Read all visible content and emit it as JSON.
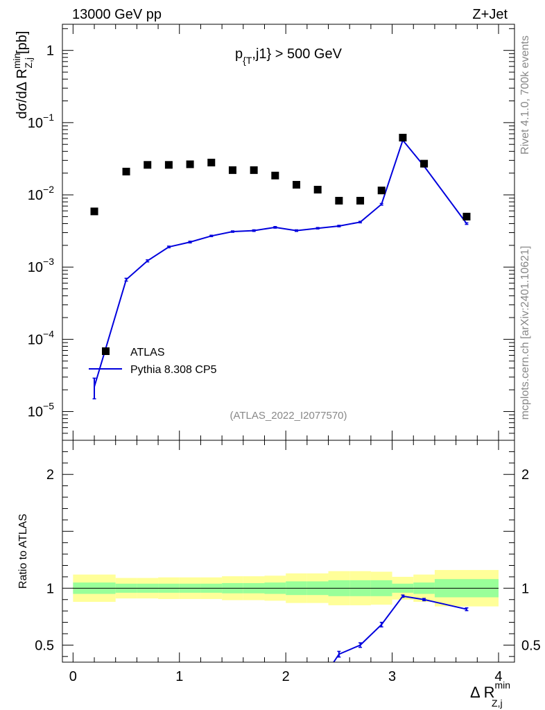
{
  "header": {
    "left": "13000 GeV pp",
    "right": "Z+Jet"
  },
  "sidebar": {
    "rivet": "Rivet 4.1.0,  700k events",
    "mcplots": "mcplots.cern.ch [arXiv:2401.10621]"
  },
  "chart_data": [
    {
      "type": "scatter",
      "title": "p_{T},j1} > 500 GeV",
      "title_main": "p",
      "title_sub": "{T",
      "title_rest": ",j1} > 500 GeV",
      "ylabel": "dσ/dΔ R^min_Z,j [pb]",
      "ylabel_main": "dσ/dΔ R",
      "ylabel_sup": "min",
      "ylabel_sub": "Z,j",
      "ylabel_unit": "[pb]",
      "yscale": "log",
      "ylim": [
        4e-06,
        2.3
      ],
      "xlim": [
        -0.1,
        4.15
      ],
      "ytick_labels": [
        {
          "value": 1,
          "base": "1",
          "exp": ""
        },
        {
          "value": 0.1,
          "base": "10",
          "exp": "−1"
        },
        {
          "value": 0.01,
          "base": "10",
          "exp": "−2"
        },
        {
          "value": 0.001,
          "base": "10",
          "exp": "−3"
        },
        {
          "value": 0.0001,
          "base": "10",
          "exp": "−4"
        },
        {
          "value": 1e-05,
          "base": "10",
          "exp": "−5"
        }
      ],
      "watermark": "(ATLAS_2022_I2077570)",
      "legend_position": "lower-left",
      "series": [
        {
          "name": "ATLAS",
          "style": "square-marker",
          "color": "#000000",
          "x": [
            0.2,
            0.5,
            0.7,
            0.9,
            1.1,
            1.3,
            1.5,
            1.7,
            1.9,
            2.1,
            2.3,
            2.5,
            2.7,
            2.9,
            3.1,
            3.3,
            3.7
          ],
          "y": [
            0.0059,
            0.021,
            0.026,
            0.026,
            0.0265,
            0.028,
            0.022,
            0.022,
            0.0185,
            0.0138,
            0.0118,
            0.0083,
            0.0083,
            0.0115,
            0.062,
            0.027,
            0.005
          ]
        },
        {
          "name": "Pythia 8.308 CP5",
          "style": "line",
          "color": "#0000dd",
          "x": [
            0.2,
            0.5,
            0.7,
            0.9,
            1.1,
            1.3,
            1.5,
            1.7,
            1.9,
            2.1,
            2.3,
            2.5,
            2.7,
            2.9,
            3.1,
            3.3,
            3.7
          ],
          "y": [
            2.2e-05,
            0.00067,
            0.00122,
            0.0019,
            0.00222,
            0.0027,
            0.0031,
            0.0032,
            0.00355,
            0.0032,
            0.00345,
            0.0037,
            0.0042,
            0.0074,
            0.057,
            0.025,
            0.004
          ],
          "y_low": [
            1.5e-05,
            0.00064,
            0.00118,
            0.00185,
            0.00216,
            0.00264,
            0.00303,
            0.00312,
            0.00346,
            0.00312,
            0.00337,
            0.00361,
            0.0041,
            0.0072,
            0.0555,
            0.0243,
            0.0039
          ],
          "y_high": [
            2.9e-05,
            0.0007,
            0.00126,
            0.00195,
            0.00228,
            0.00276,
            0.00317,
            0.00328,
            0.00364,
            0.00328,
            0.00353,
            0.00379,
            0.0043,
            0.0076,
            0.0585,
            0.0257,
            0.0041
          ]
        }
      ]
    },
    {
      "type": "line",
      "ylabel": "Ratio to ATLAS",
      "xlabel": "Δ R^min_Z,j",
      "xlabel_main": "Δ R",
      "xlabel_sup": "min",
      "xlabel_sub": "Z,j",
      "ylim": [
        0.35,
        2.3
      ],
      "xlim": [
        -0.1,
        4.15
      ],
      "yticks": [
        0.5,
        1,
        2
      ],
      "ytick_labels": [
        "0.5",
        "1",
        "2"
      ],
      "xticks": [
        0,
        1,
        2,
        3,
        4
      ],
      "xtick_labels": [
        "0",
        "1",
        "2",
        "3",
        "4"
      ],
      "bands": {
        "edges": [
          0.0,
          0.4,
          0.6,
          0.8,
          1.0,
          1.2,
          1.4,
          1.6,
          1.8,
          2.0,
          2.2,
          2.4,
          2.6,
          2.8,
          3.0,
          3.2,
          3.4,
          4.0
        ],
        "inner_low": [
          0.95,
          0.96,
          0.96,
          0.96,
          0.96,
          0.96,
          0.955,
          0.955,
          0.95,
          0.94,
          0.94,
          0.93,
          0.93,
          0.93,
          0.96,
          0.95,
          0.92
        ],
        "inner_high": [
          1.05,
          1.04,
          1.04,
          1.04,
          1.04,
          1.04,
          1.045,
          1.045,
          1.05,
          1.06,
          1.06,
          1.07,
          1.07,
          1.07,
          1.04,
          1.05,
          1.08
        ],
        "outer_low": [
          0.88,
          0.91,
          0.91,
          0.905,
          0.905,
          0.905,
          0.895,
          0.895,
          0.89,
          0.87,
          0.87,
          0.85,
          0.85,
          0.855,
          0.9,
          0.88,
          0.84
        ],
        "outer_high": [
          1.12,
          1.09,
          1.09,
          1.095,
          1.095,
          1.095,
          1.105,
          1.105,
          1.11,
          1.13,
          1.13,
          1.15,
          1.15,
          1.145,
          1.1,
          1.12,
          1.16
        ],
        "inner_color": "#99ff99",
        "outer_color": "#ffff99"
      },
      "series": [
        {
          "name": "Pythia 8.308 CP5 / ATLAS",
          "color": "#0000dd",
          "x": [
            2.45,
            2.5,
            2.7,
            2.9,
            3.1,
            3.3,
            3.7
          ],
          "y": [
            0.35,
            0.42,
            0.5,
            0.68,
            0.93,
            0.9,
            0.815
          ],
          "err": [
            0,
            0.025,
            0.02,
            0.02,
            0.01,
            0.01,
            0.012
          ]
        }
      ]
    }
  ]
}
